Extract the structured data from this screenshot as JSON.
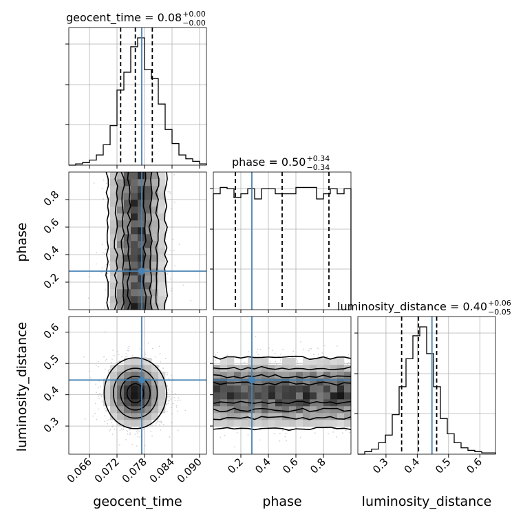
{
  "colors": {
    "truth": "#4682b4",
    "hist": "#000000",
    "grid": "#b0b0b0",
    "points": "#9a9a9a",
    "density_dark": "#000000",
    "density_light": "#f4f4f4"
  },
  "chart_data": {
    "type": "corner",
    "grid": true,
    "parameters": [
      {
        "name": "geocent_time",
        "range": [
          0.0615,
          0.0915
        ],
        "ticks": [
          0.066,
          0.072,
          0.078,
          0.084,
          0.09
        ],
        "tick_labels": [
          "0.066",
          "0.072",
          "0.078",
          "0.084",
          "0.090"
        ],
        "truth": 0.0774
      },
      {
        "name": "phase",
        "range": [
          0.0,
          1.0
        ],
        "ticks": [
          0.2,
          0.4,
          0.6,
          0.8
        ],
        "tick_labels": [
          "0.2",
          "0.4",
          "0.6",
          "0.8"
        ],
        "truth": 0.28
      },
      {
        "name": "luminosity_distance",
        "range": [
          0.21,
          0.65
        ],
        "ticks": [
          0.3,
          0.4,
          0.5,
          0.6
        ],
        "tick_labels": [
          "0.3",
          "0.4",
          "0.5",
          "0.6"
        ],
        "truth": 0.447
      }
    ],
    "titles": [
      {
        "main": "geocent_time = 0.08",
        "plus": "+0.00",
        "minus": "−0.00"
      },
      {
        "main": "phase = 0.50",
        "plus": "+0.34",
        "minus": "−0.34"
      },
      {
        "main": "luminosity_distance = 0.40",
        "plus": "+0.06",
        "minus": "−0.05"
      }
    ],
    "marginals": [
      {
        "parameter": "geocent_time",
        "quantiles": [
          0.0728,
          0.076,
          0.0797
        ],
        "bins": [
          0.0615,
          0.063,
          0.0645,
          0.066,
          0.0675,
          0.069,
          0.0705,
          0.072,
          0.0735,
          0.075,
          0.0765,
          0.078,
          0.0795,
          0.081,
          0.0825,
          0.084,
          0.0855,
          0.087,
          0.0885,
          0.09,
          0.0915
        ],
        "counts": [
          0.0,
          0.01,
          0.02,
          0.04,
          0.08,
          0.16,
          0.31,
          0.59,
          0.73,
          0.93,
          1.0,
          0.75,
          0.68,
          0.48,
          0.28,
          0.17,
          0.08,
          0.05,
          0.03,
          0.01
        ]
      },
      {
        "parameter": "phase",
        "quantiles": [
          0.16,
          0.5,
          0.84
        ],
        "bins": [
          0.0,
          0.05,
          0.1,
          0.15,
          0.2,
          0.25,
          0.3,
          0.35,
          0.4,
          0.45,
          0.5,
          0.55,
          0.6,
          0.65,
          0.7,
          0.75,
          0.8,
          0.85,
          0.9,
          0.95,
          1.0
        ],
        "counts": [
          0.91,
          0.96,
          0.95,
          0.88,
          0.91,
          0.95,
          0.87,
          0.95,
          0.95,
          0.91,
          0.91,
          0.91,
          0.96,
          0.96,
          0.96,
          0.87,
          0.91,
          0.95,
          0.91,
          0.95
        ]
      },
      {
        "parameter": "luminosity_distance",
        "quantiles": [
          0.35,
          0.404,
          0.462
        ],
        "bins": [
          0.21,
          0.232,
          0.254,
          0.276,
          0.298,
          0.32,
          0.342,
          0.364,
          0.386,
          0.408,
          0.43,
          0.452,
          0.474,
          0.496,
          0.518,
          0.54,
          0.562,
          0.584,
          0.606,
          0.628,
          0.65
        ],
        "counts": [
          0.0,
          0.02,
          0.04,
          0.09,
          0.15,
          0.31,
          0.53,
          0.75,
          0.93,
          1.0,
          0.79,
          0.53,
          0.28,
          0.16,
          0.09,
          0.05,
          0.03,
          0.02,
          0.01,
          0.01
        ]
      }
    ],
    "joint": [
      {
        "x": "geocent_time",
        "y": "phase",
        "x_center": 0.0763,
        "x_sigma": 0.0031,
        "y_uniform": [
          0.0,
          1.0
        ]
      },
      {
        "x": "geocent_time",
        "y": "luminosity_distance",
        "x_center": 0.076,
        "x_sigma": 0.0033,
        "y_center": 0.405,
        "y_sigma": 0.055
      },
      {
        "x": "phase",
        "y": "luminosity_distance",
        "x_uniform": [
          0.0,
          1.0
        ],
        "y_center": 0.405,
        "y_sigma": 0.055
      }
    ]
  }
}
